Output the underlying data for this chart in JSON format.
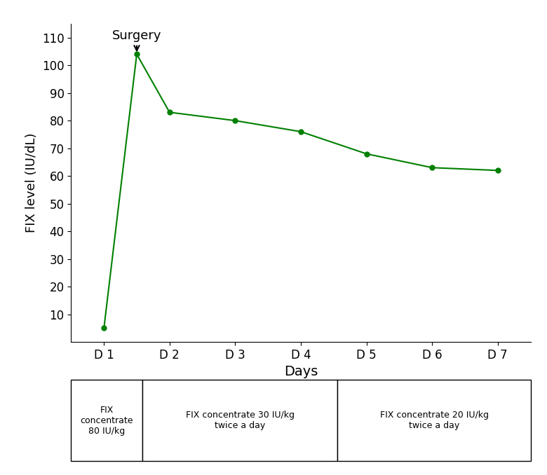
{
  "x_plot": [
    1,
    1.5,
    2,
    3,
    4,
    5,
    6,
    7
  ],
  "y_plot": [
    5,
    104,
    83,
    80,
    76,
    68,
    63,
    62
  ],
  "line_color": "#008000",
  "marker_color": "#008000",
  "marker_size": 5,
  "xlabel": "Days",
  "ylabel": "FIX level (IU/dL)",
  "xlim": [
    0.5,
    7.5
  ],
  "ylim": [
    0,
    115
  ],
  "yticks": [
    10,
    20,
    30,
    40,
    50,
    60,
    70,
    80,
    90,
    100,
    110
  ],
  "xtick_labels": [
    "D 1",
    "D 2",
    "D 3",
    "D 4",
    "D 5",
    "D 6",
    "D 7"
  ],
  "xtick_positions": [
    1,
    2,
    3,
    4,
    5,
    6,
    7
  ],
  "surgery_x": 1.5,
  "surgery_y": 104,
  "surgery_label": "Surgery",
  "background_color": "#ffffff",
  "table_col1": "FIX\nconcentrate\n80 IU/kg",
  "table_col2": "FIX concentrate 30 IU/kg\ntwice a day",
  "table_col3": "FIX concentrate 20 IU/kg\ntwice a day",
  "xlabel_fontsize": 14,
  "ylabel_fontsize": 13,
  "tick_fontsize": 12,
  "surgery_fontsize": 13,
  "linewidth": 1.5
}
